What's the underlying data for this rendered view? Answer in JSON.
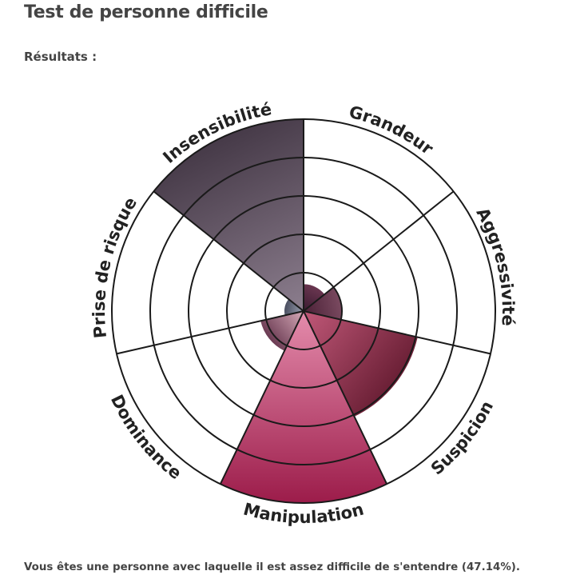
{
  "header": {
    "title": "Test de personne difficile"
  },
  "section": {
    "label": "Résultats :"
  },
  "result": {
    "text": "Vous êtes une personne avec laquelle il est assez difficile de s'entendre (47.14%)."
  },
  "chart_data": {
    "type": "polar-area",
    "title": "",
    "categories": [
      "Grandeur",
      "Aggressivité",
      "Suspicion",
      "Manipulation",
      "Dominance",
      "Prise de risque",
      "Insensibilité"
    ],
    "values": [
      14,
      20,
      61,
      100,
      23,
      10,
      100
    ],
    "rlim": [
      0,
      100
    ],
    "rings": 5,
    "grid": true,
    "colors": [
      [
        "#3a1a30",
        "#6a3650"
      ],
      [
        "#4a2036",
        "#7a4a60"
      ],
      [
        "#c05878",
        "#6a1f35"
      ],
      [
        "#e48cac",
        "#9c1c4a"
      ],
      [
        "#d6aab8",
        "#6a3a52"
      ],
      [
        "#9aa0b0",
        "#4a4e60"
      ],
      [
        "#8c7e8e",
        "#463a48"
      ]
    ]
  }
}
